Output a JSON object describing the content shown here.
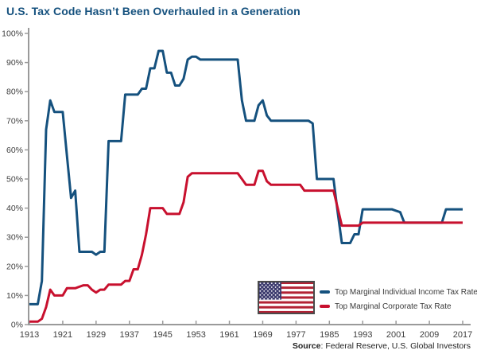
{
  "title": "U.S. Tax Code Hasn’t Been Overhauled in a Generation",
  "source": {
    "label": "Source",
    "rest": ": Federal Reserve, U.S. Global Investors"
  },
  "legend": {
    "flag_icon": "us-flag",
    "items": [
      {
        "label": "Top Marginal Individual Income Tax Rate",
        "color": "#15517E"
      },
      {
        "label": "Top Marginal Corporate Tax Rate",
        "color": "#C8102E"
      }
    ]
  },
  "colors": {
    "title_blue": "#15517E",
    "series_blue": "#15517E",
    "series_red": "#C8102E",
    "axis_gray": "#9a9a9a",
    "tick_text": "#404040",
    "flag_canton": "#3C3B6E",
    "flag_red": "#B22234"
  },
  "chart_data": {
    "type": "line",
    "title": "U.S. Tax Code Hasn’t Been Overhauled in a Generation",
    "xlabel": "",
    "ylabel": "",
    "xlim": [
      1913,
      2017
    ],
    "ylim": [
      0,
      100
    ],
    "grid": false,
    "legend_position": "bottom-right",
    "x_ticks": [
      1913,
      1921,
      1929,
      1937,
      1945,
      1953,
      1961,
      1969,
      1977,
      1985,
      1993,
      2001,
      2009,
      2017
    ],
    "y_ticks": [
      0,
      10,
      20,
      30,
      40,
      50,
      60,
      70,
      80,
      90,
      100
    ],
    "y_tick_suffix": "%",
    "series": [
      {
        "name": "Top Marginal Individual Income Tax Rate",
        "color": "#15517E",
        "points": [
          [
            1913,
            7
          ],
          [
            1915,
            7
          ],
          [
            1916,
            15
          ],
          [
            1917,
            67
          ],
          [
            1918,
            77
          ],
          [
            1919,
            73
          ],
          [
            1921,
            73
          ],
          [
            1922,
            58
          ],
          [
            1923,
            43.5
          ],
          [
            1924,
            46
          ],
          [
            1925,
            25
          ],
          [
            1928,
            25
          ],
          [
            1929,
            24
          ],
          [
            1930,
            25
          ],
          [
            1931,
            25
          ],
          [
            1932,
            63
          ],
          [
            1935,
            63
          ],
          [
            1936,
            79
          ],
          [
            1939,
            79
          ],
          [
            1940,
            81
          ],
          [
            1941,
            81
          ],
          [
            1942,
            88
          ],
          [
            1943,
            88
          ],
          [
            1944,
            94
          ],
          [
            1945,
            94
          ],
          [
            1946,
            86.5
          ],
          [
            1947,
            86.5
          ],
          [
            1948,
            82.1
          ],
          [
            1949,
            82.1
          ],
          [
            1950,
            84.4
          ],
          [
            1951,
            91
          ],
          [
            1952,
            92
          ],
          [
            1953,
            92
          ],
          [
            1954,
            91
          ],
          [
            1963,
            91
          ],
          [
            1964,
            77
          ],
          [
            1965,
            70
          ],
          [
            1967,
            70
          ],
          [
            1968,
            75.3
          ],
          [
            1969,
            77
          ],
          [
            1970,
            71.8
          ],
          [
            1971,
            70
          ],
          [
            1980,
            70
          ],
          [
            1981,
            69.1
          ],
          [
            1982,
            50
          ],
          [
            1986,
            50
          ],
          [
            1987,
            38.5
          ],
          [
            1988,
            28
          ],
          [
            1990,
            28
          ],
          [
            1991,
            31
          ],
          [
            1992,
            31
          ],
          [
            1993,
            39.6
          ],
          [
            2000,
            39.6
          ],
          [
            2001,
            39.1
          ],
          [
            2002,
            38.6
          ],
          [
            2003,
            35
          ],
          [
            2012,
            35
          ],
          [
            2013,
            39.6
          ],
          [
            2017,
            39.6
          ]
        ]
      },
      {
        "name": "Top Marginal Corporate Tax Rate",
        "color": "#C8102E",
        "points": [
          [
            1913,
            1
          ],
          [
            1915,
            1
          ],
          [
            1916,
            2
          ],
          [
            1917,
            6
          ],
          [
            1918,
            12
          ],
          [
            1919,
            10
          ],
          [
            1921,
            10
          ],
          [
            1922,
            12.5
          ],
          [
            1924,
            12.5
          ],
          [
            1925,
            13
          ],
          [
            1926,
            13.5
          ],
          [
            1927,
            13.5
          ],
          [
            1928,
            12
          ],
          [
            1929,
            11
          ],
          [
            1930,
            12
          ],
          [
            1931,
            12
          ],
          [
            1932,
            13.75
          ],
          [
            1935,
            13.75
          ],
          [
            1936,
            15
          ],
          [
            1937,
            15
          ],
          [
            1938,
            19
          ],
          [
            1939,
            19
          ],
          [
            1940,
            24
          ],
          [
            1941,
            31
          ],
          [
            1942,
            40
          ],
          [
            1945,
            40
          ],
          [
            1946,
            38
          ],
          [
            1949,
            38
          ],
          [
            1950,
            42
          ],
          [
            1951,
            50.75
          ],
          [
            1952,
            52
          ],
          [
            1963,
            52
          ],
          [
            1964,
            50
          ],
          [
            1965,
            48
          ],
          [
            1967,
            48
          ],
          [
            1968,
            52.8
          ],
          [
            1969,
            52.8
          ],
          [
            1970,
            49.2
          ],
          [
            1971,
            48
          ],
          [
            1978,
            48
          ],
          [
            1979,
            46
          ],
          [
            1986,
            46
          ],
          [
            1987,
            40
          ],
          [
            1988,
            34
          ],
          [
            1992,
            34
          ],
          [
            1993,
            35
          ],
          [
            2017,
            35
          ]
        ]
      }
    ]
  }
}
